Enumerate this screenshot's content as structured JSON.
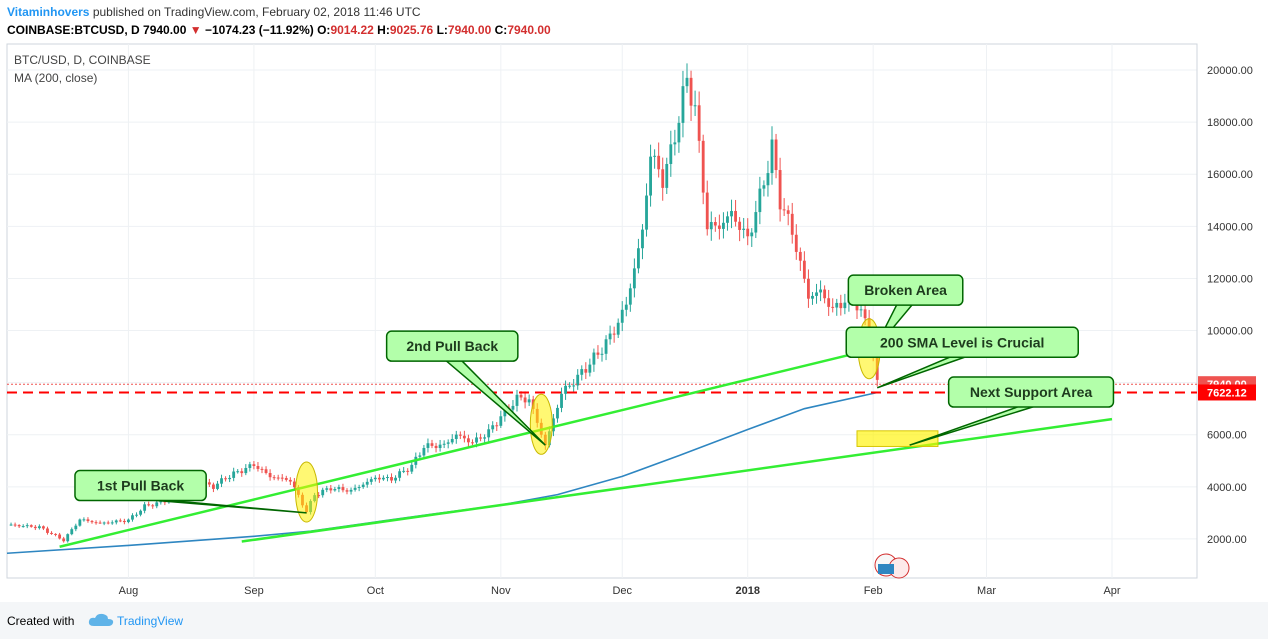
{
  "header": {
    "author": "Vitaminhovers",
    "published": "published on TradingView.com, February 02, 2018 11:46 UTC",
    "symbol": "COINBASE:BTCUSD, D",
    "last": "7940.00",
    "change": "−1074.23 (−11.92%)",
    "o_label": "O:",
    "o_val": "9014.22",
    "h_label": "H:",
    "h_val": "9025.76",
    "l_label": "L:",
    "l_val": "7940.00",
    "c_label": "C:",
    "c_val": "7940.00",
    "down_color": "#d32f2f"
  },
  "footer": {
    "created_with": "Created with",
    "brand": "TradingView"
  },
  "chart_data": {
    "type": "candlestick",
    "title": "BTC/USD, D, COINBASE",
    "indicator": "MA (200, close)",
    "y_ticks": [
      2000,
      4000,
      6000,
      8000,
      10000,
      12000,
      14000,
      16000,
      18000,
      20000
    ],
    "ylim": [
      500,
      21000
    ],
    "x_ticks": [
      {
        "label": "Aug",
        "date": "2017-08-01"
      },
      {
        "label": "Sep",
        "date": "2017-09-01"
      },
      {
        "label": "Oct",
        "date": "2017-10-01"
      },
      {
        "label": "Nov",
        "date": "2017-11-01"
      },
      {
        "label": "Dec",
        "date": "2017-12-01"
      },
      {
        "label": "2018",
        "date": "2018-01-01"
      },
      {
        "label": "Feb",
        "date": "2018-02-01"
      },
      {
        "label": "Mar",
        "date": "2018-03-01"
      },
      {
        "label": "Apr",
        "date": "2018-04-01"
      }
    ],
    "xlim": [
      "2017-07-02",
      "2018-04-22"
    ],
    "price_path": [
      [
        "2017-07-02",
        2550
      ],
      [
        "2017-07-10",
        2450
      ],
      [
        "2017-07-16",
        1950
      ],
      [
        "2017-07-20",
        2750
      ],
      [
        "2017-07-25",
        2600
      ],
      [
        "2017-08-01",
        2720
      ],
      [
        "2017-08-05",
        3250
      ],
      [
        "2017-08-10",
        3450
      ],
      [
        "2017-08-14",
        4300
      ],
      [
        "2017-08-17",
        4300
      ],
      [
        "2017-08-22",
        4000
      ],
      [
        "2017-08-25",
        4350
      ],
      [
        "2017-09-01",
        4850
      ],
      [
        "2017-09-05",
        4400
      ],
      [
        "2017-09-10",
        4250
      ],
      [
        "2017-09-14",
        3050
      ],
      [
        "2017-09-16",
        3700
      ],
      [
        "2017-09-20",
        3950
      ],
      [
        "2017-09-25",
        3850
      ],
      [
        "2017-10-01",
        4350
      ],
      [
        "2017-10-05",
        4300
      ],
      [
        "2017-10-10",
        4800
      ],
      [
        "2017-10-13",
        5550
      ],
      [
        "2017-10-18",
        5600
      ],
      [
        "2017-10-21",
        6000
      ],
      [
        "2017-10-25",
        5700
      ],
      [
        "2017-10-29",
        6100
      ],
      [
        "2017-11-01",
        6700
      ],
      [
        "2017-11-05",
        7400
      ],
      [
        "2017-11-08",
        7350
      ],
      [
        "2017-11-12",
        5600
      ],
      [
        "2017-11-16",
        7600
      ],
      [
        "2017-11-20",
        8200
      ],
      [
        "2017-11-26",
        9300
      ],
      [
        "2017-11-29",
        10000
      ],
      [
        "2017-12-02",
        11000
      ],
      [
        "2017-12-06",
        13800
      ],
      [
        "2017-12-08",
        16800
      ],
      [
        "2017-12-11",
        15800
      ],
      [
        "2017-12-13",
        16800
      ],
      [
        "2017-12-17",
        19650
      ],
      [
        "2017-12-19",
        18500
      ],
      [
        "2017-12-22",
        14000
      ],
      [
        "2017-12-25",
        14000
      ],
      [
        "2017-12-28",
        14500
      ],
      [
        "2018-01-01",
        13500
      ],
      [
        "2018-01-04",
        15100
      ],
      [
        "2018-01-07",
        17000
      ],
      [
        "2018-01-09",
        15000
      ],
      [
        "2018-01-12",
        13800
      ],
      [
        "2018-01-16",
        11300
      ],
      [
        "2018-01-19",
        11500
      ],
      [
        "2018-01-22",
        10800
      ],
      [
        "2018-01-27",
        11400
      ],
      [
        "2018-01-30",
        10300
      ],
      [
        "2018-02-01",
        9014
      ],
      [
        "2018-02-02",
        7940
      ]
    ],
    "sma200_path": [
      [
        "2017-07-02",
        1450
      ],
      [
        "2017-08-01",
        1750
      ],
      [
        "2017-09-01",
        2100
      ],
      [
        "2017-09-15",
        2300
      ],
      [
        "2017-10-01",
        2650
      ],
      [
        "2017-10-15",
        2950
      ],
      [
        "2017-11-01",
        3300
      ],
      [
        "2017-11-15",
        3700
      ],
      [
        "2017-12-01",
        4400
      ],
      [
        "2017-12-15",
        5200
      ],
      [
        "2018-01-01",
        6200
      ],
      [
        "2018-01-15",
        7000
      ],
      [
        "2018-02-02",
        7622
      ]
    ],
    "price_labels": [
      {
        "value": 7940,
        "text": "7940.00",
        "color": "#ef5350"
      },
      {
        "value": 7622.12,
        "text": "7622.12",
        "color": "#ff0000"
      }
    ],
    "horizontal_lines": [
      {
        "value": 7940,
        "color": "#ef5350",
        "style": "dotted"
      },
      {
        "value": 7622.12,
        "color": "#ff0000",
        "style": "dashed"
      }
    ],
    "trendlines": [
      {
        "from": [
          "2017-07-15",
          1700
        ],
        "to": [
          "2018-02-04",
          9400
        ]
      },
      {
        "from": [
          "2017-08-29",
          1900
        ],
        "to": [
          "2018-04-01",
          6600
        ]
      }
    ],
    "annotations": [
      {
        "text": "1st Pull Back",
        "box": [
          "2017-08-04",
          4050
        ],
        "target": [
          "2017-09-14",
          3000
        ]
      },
      {
        "text": "2nd Pull Back",
        "box": [
          "2017-10-20",
          9400
        ],
        "target": [
          "2017-11-12",
          5600
        ]
      },
      {
        "text": "Broken Area",
        "box": [
          "2018-02-09",
          11550
        ],
        "target": [
          "2018-02-01",
          9200
        ]
      },
      {
        "text": "200 SMA  Level is Crucial",
        "box": [
          "2018-02-23",
          9550
        ],
        "target": [
          "2018-02-02",
          7800
        ]
      },
      {
        "text": "Next Support Area",
        "box": [
          "2018-03-12",
          7640
        ],
        "target": [
          "2018-02-10",
          5600
        ]
      }
    ],
    "highlights": [
      {
        "type": "ellipse",
        "center": [
          "2017-09-14",
          3800
        ]
      },
      {
        "type": "ellipse",
        "center": [
          "2017-11-11",
          6400
        ]
      },
      {
        "type": "ellipse",
        "center": [
          "2018-01-31",
          9300
        ]
      },
      {
        "type": "rect",
        "from": [
          "2018-01-28",
          5550
        ],
        "to": [
          "2018-02-17",
          6150
        ]
      }
    ],
    "grid": true,
    "colors": {
      "up": "#26a69a",
      "down": "#ef5350",
      "sma": "#2e86c1",
      "trend": "#33ee33",
      "callout": "#b3ffaa",
      "callout_border": "#006600",
      "highlight": "#fff200"
    }
  }
}
